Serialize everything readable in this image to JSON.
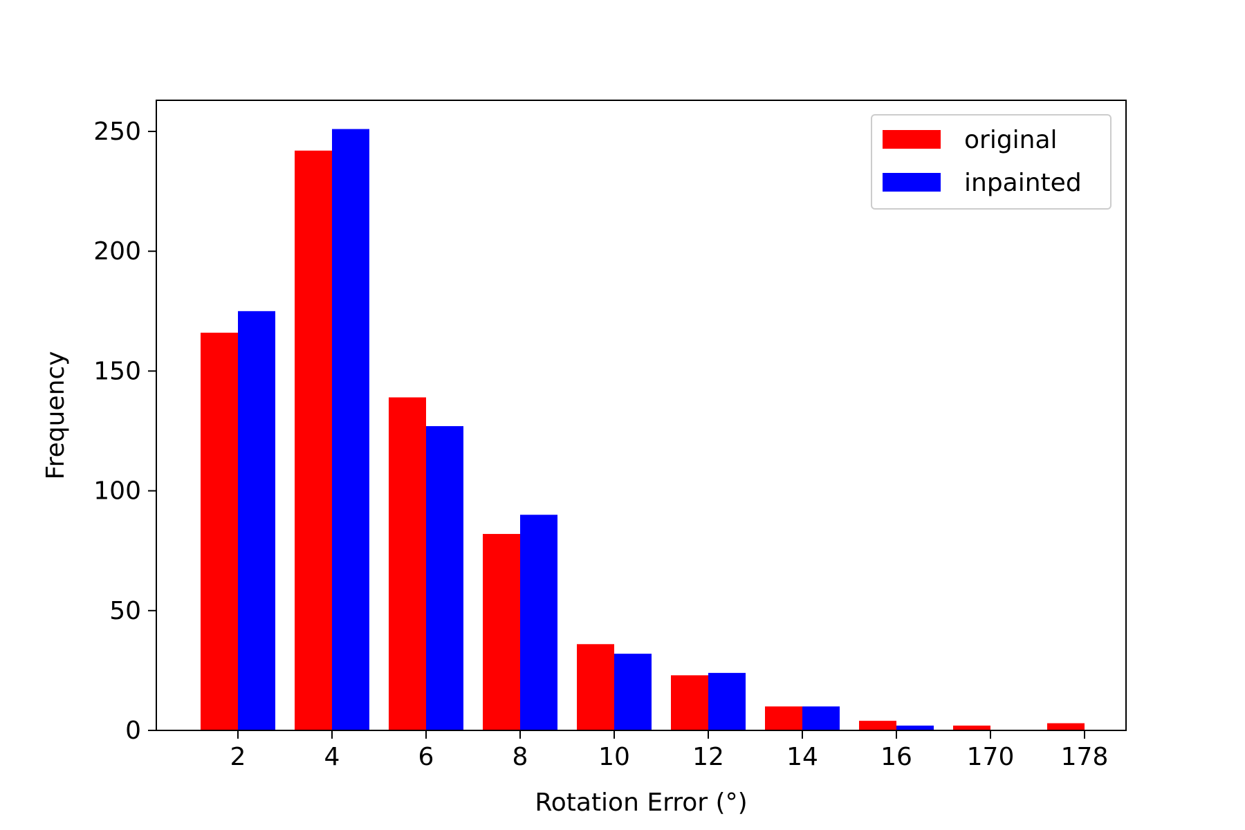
{
  "chart_data": {
    "type": "bar",
    "title": "",
    "xlabel": "Rotation Error (°)",
    "ylabel": "Frequency",
    "categories": [
      "2",
      "4",
      "6",
      "8",
      "10",
      "12",
      "14",
      "16",
      "170",
      "178"
    ],
    "series": [
      {
        "name": "original",
        "color": "#ff0000",
        "values": [
          166,
          242,
          139,
          82,
          36,
          23,
          10,
          4,
          2,
          3
        ]
      },
      {
        "name": "inpainted",
        "color": "#0000ff",
        "values": [
          175,
          251,
          127,
          90,
          32,
          24,
          10,
          2,
          0,
          0
        ]
      }
    ],
    "ylim": [
      0,
      263
    ],
    "yticks": [
      0,
      50,
      100,
      150,
      200,
      250
    ],
    "grid": false,
    "legend": "top-right"
  }
}
